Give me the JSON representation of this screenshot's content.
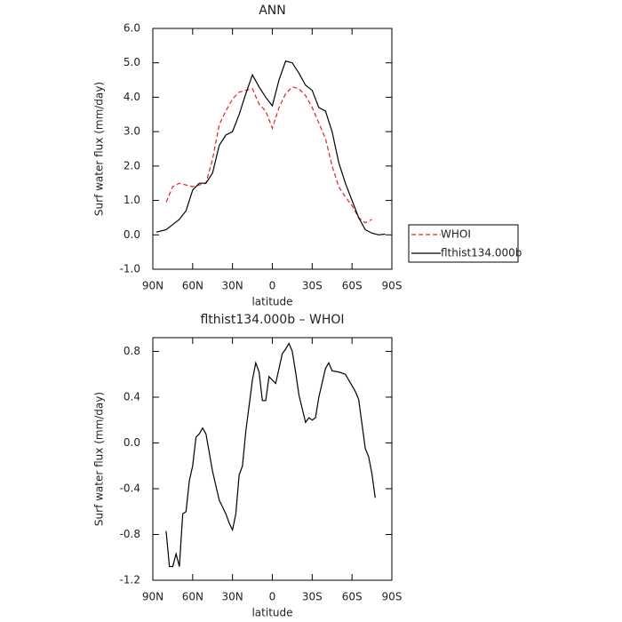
{
  "chart_data": [
    {
      "type": "line",
      "title": "ANN",
      "xlabel": "latitude",
      "ylabel": "Surf water flux (mm/day)",
      "x": [
        87.5,
        85,
        80,
        75,
        70,
        65,
        60,
        55,
        50,
        45,
        40,
        35,
        30,
        25,
        20,
        15,
        10,
        5,
        0,
        -5,
        -10,
        -15,
        -20,
        -25,
        -30,
        -35,
        -40,
        -45,
        -50,
        -55,
        -60,
        -65,
        -70,
        -75,
        -80,
        -85
      ],
      "series": [
        {
          "name": "WHOI",
          "color": "#e8201e",
          "style": "dashed",
          "values": [
            null,
            null,
            0.95,
            1.4,
            1.5,
            1.45,
            1.4,
            1.45,
            1.5,
            2.2,
            3.2,
            3.6,
            3.95,
            4.15,
            4.2,
            4.25,
            3.8,
            3.6,
            3.1,
            3.7,
            4.1,
            4.3,
            4.25,
            4.05,
            3.7,
            3.25,
            2.8,
            2.0,
            1.4,
            1.1,
            0.85,
            0.5,
            0.35,
            0.45,
            null,
            null
          ]
        },
        {
          "name": "flthist134.000b",
          "color": "#000000",
          "style": "solid",
          "values": [
            0.08,
            0.1,
            0.15,
            0.3,
            0.45,
            0.7,
            1.3,
            1.5,
            1.5,
            1.8,
            2.6,
            2.9,
            3.0,
            3.5,
            4.1,
            4.65,
            4.3,
            4.0,
            3.75,
            4.5,
            5.05,
            5.0,
            4.7,
            4.35,
            4.2,
            3.7,
            3.6,
            3.0,
            2.1,
            1.5,
            1.0,
            0.5,
            0.15,
            0.05,
            0.0,
            0.02
          ]
        }
      ],
      "xlim": [
        90,
        -90
      ],
      "xticks": [
        {
          "value": 90,
          "label": "90N"
        },
        {
          "value": 60,
          "label": "60N"
        },
        {
          "value": 30,
          "label": "30N"
        },
        0,
        {
          "value": -30,
          "label": "30S"
        },
        {
          "value": -60,
          "label": "60S"
        },
        {
          "value": -90,
          "label": "90S"
        }
      ],
      "ylim": [
        -1,
        6
      ],
      "yticks": [
        {
          "value": -1,
          "label": "-1.0"
        },
        {
          "value": 0,
          "label": "0.0"
        },
        {
          "value": 1,
          "label": "1.0"
        },
        {
          "value": 2,
          "label": "2.0"
        },
        {
          "value": 3,
          "label": "3.0"
        },
        {
          "value": 4,
          "label": "4.0"
        },
        {
          "value": 5,
          "label": "5.0"
        },
        {
          "value": 6,
          "label": "6.0"
        }
      ],
      "legend": "right"
    },
    {
      "type": "line",
      "title": "flthist134.000b – WHOI",
      "xlabel": "latitude",
      "ylabel": "Surf water flux (mm/day)",
      "x": [
        80,
        77.5,
        75,
        72.5,
        70,
        67.5,
        65,
        62.5,
        60,
        57.5,
        55,
        52.5,
        50,
        45,
        40,
        35,
        32.5,
        30,
        27.5,
        25,
        22.5,
        20,
        15,
        12.5,
        10,
        7.5,
        5,
        2.5,
        0,
        -2.5,
        -5,
        -7.5,
        -10,
        -12.5,
        -15,
        -17.5,
        -20,
        -22.5,
        -25,
        -27.5,
        -30,
        -32.5,
        -35,
        -40,
        -42.5,
        -45,
        -50,
        -55,
        -60,
        -62.5,
        -65,
        -70,
        -72.5,
        -75,
        -77.5
      ],
      "series": [
        {
          "color": "#000000",
          "style": "solid",
          "values": [
            -0.77,
            -1.08,
            -1.08,
            -0.97,
            -1.08,
            -0.62,
            -0.6,
            -0.33,
            -0.2,
            0.05,
            0.08,
            0.13,
            0.08,
            -0.25,
            -0.5,
            -0.62,
            -0.7,
            -0.76,
            -0.62,
            -0.28,
            -0.2,
            0.1,
            0.55,
            0.7,
            0.62,
            0.37,
            0.37,
            0.58,
            0.55,
            0.52,
            0.65,
            0.78,
            0.82,
            0.87,
            0.8,
            0.62,
            0.42,
            0.3,
            0.18,
            0.22,
            0.2,
            0.22,
            0.4,
            0.65,
            0.7,
            0.63,
            0.62,
            0.6,
            0.5,
            0.45,
            0.38,
            -0.05,
            -0.12,
            -0.27,
            -0.48
          ]
        }
      ],
      "xlim": [
        90,
        -90
      ],
      "xticks": [
        {
          "value": 90,
          "label": "90N"
        },
        {
          "value": 60,
          "label": "60N"
        },
        {
          "value": 30,
          "label": "30N"
        },
        0,
        {
          "value": -30,
          "label": "30S"
        },
        {
          "value": -60,
          "label": "60S"
        },
        {
          "value": -90,
          "label": "90S"
        }
      ],
      "ylim": [
        -1.2,
        0.92
      ],
      "yticks": [
        -1.2,
        -0.8,
        -0.4,
        {
          "value": 0,
          "label": "0.0"
        },
        0.4,
        0.8
      ]
    }
  ]
}
